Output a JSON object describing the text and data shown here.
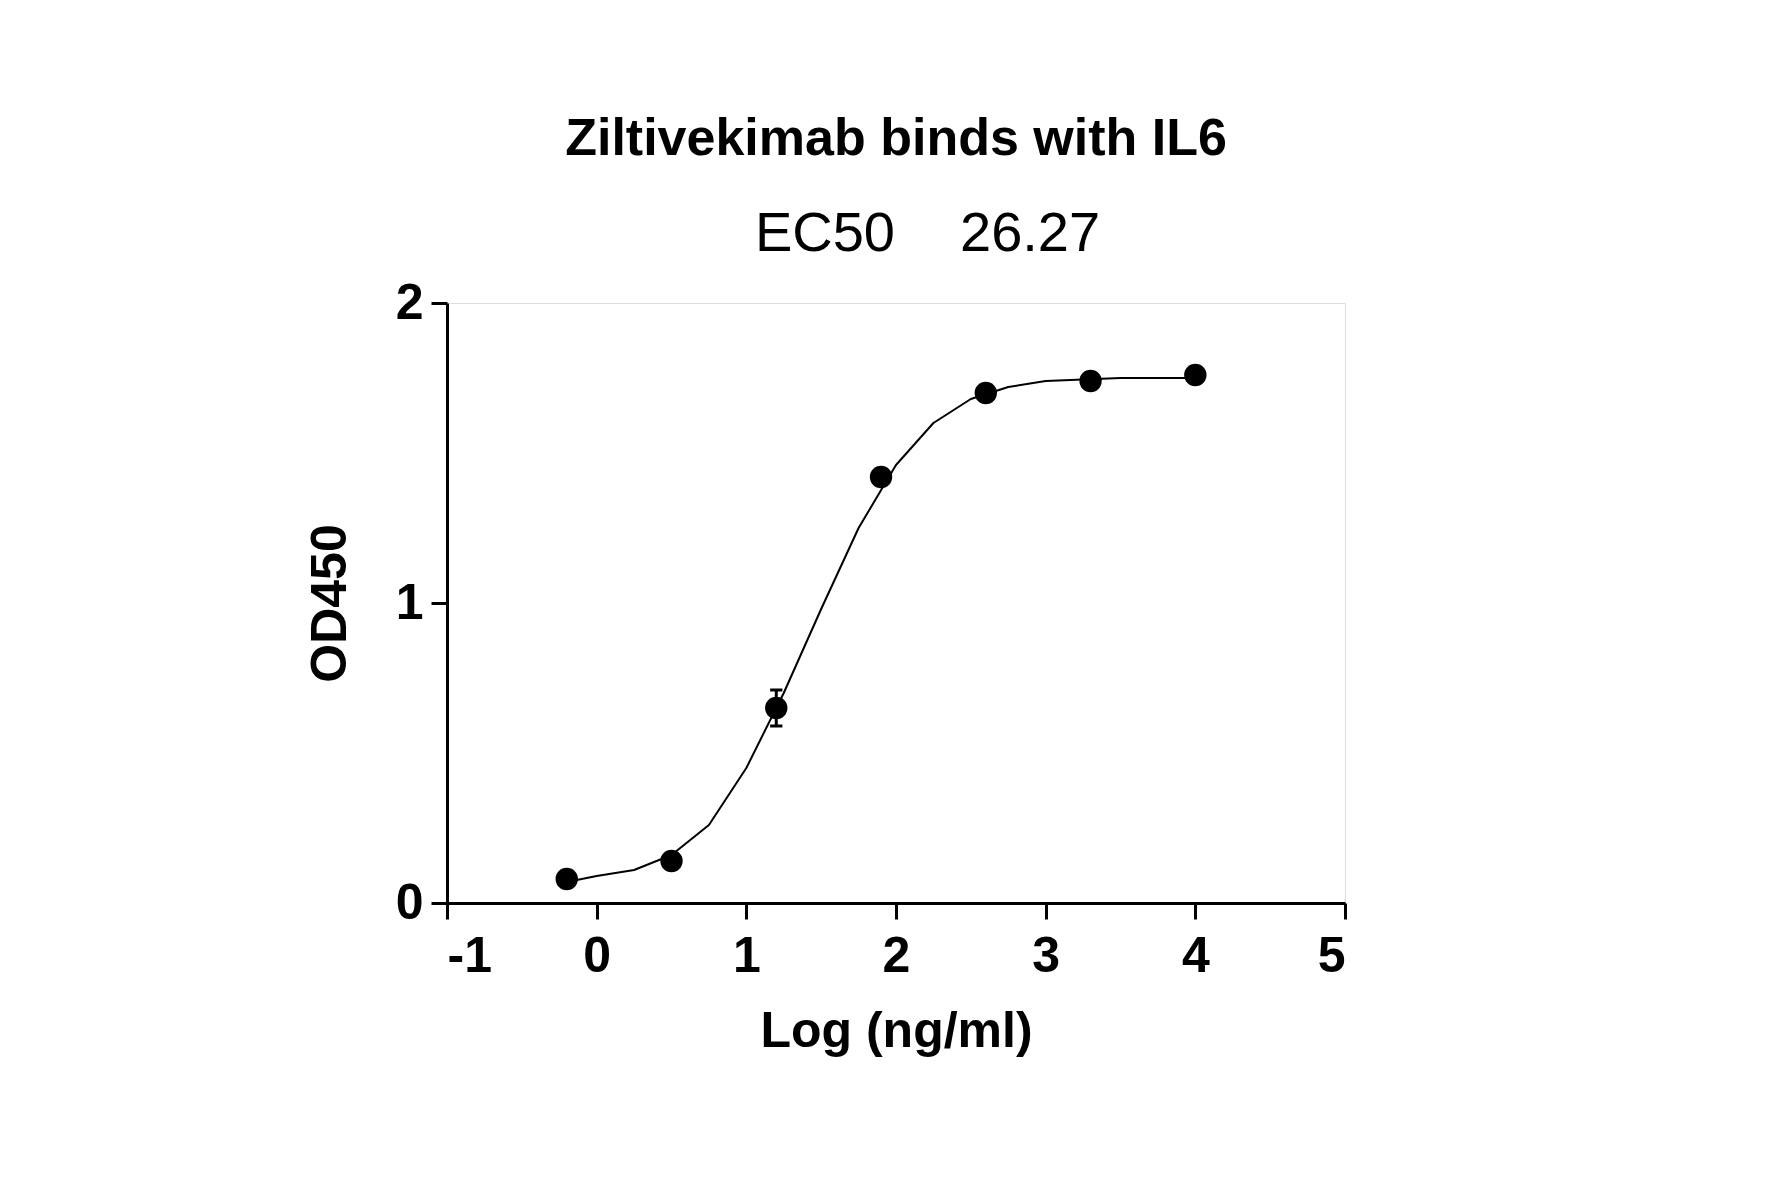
{
  "chart_data": {
    "type": "scatter",
    "title": "Ziltivekimab binds with IL6",
    "xlabel": "Log (ng/ml)",
    "ylabel": "OD450",
    "annotations": [
      "EC50",
      "26.27"
    ],
    "xlim": [
      -1,
      5
    ],
    "xticks": [
      -1,
      0,
      1,
      2,
      3,
      4,
      5
    ],
    "ylim": [
      0,
      2
    ],
    "yticks": [
      0,
      1,
      2
    ],
    "grid": false,
    "marker": "circle",
    "series": [
      {
        "color": "#000000",
        "x": [
          -0.2,
          0.5,
          1.2,
          1.9,
          2.6,
          3.3,
          4.0
        ],
        "values": [
          0.08,
          0.14,
          0.65,
          1.42,
          1.7,
          1.74,
          1.76
        ],
        "errors": [
          null,
          null,
          0.06,
          null,
          null,
          null,
          null
        ]
      },
      {
        "type": "line",
        "marker": "none",
        "color": "#000000",
        "x": [
          -0.2,
          0.0,
          0.25,
          0.5,
          0.75,
          1.0,
          1.25,
          1.5,
          1.75,
          2.0,
          2.25,
          2.5,
          2.75,
          3.0,
          3.5,
          4.0
        ],
        "values": [
          0.07,
          0.09,
          0.11,
          0.16,
          0.26,
          0.45,
          0.7,
          0.98,
          1.25,
          1.46,
          1.6,
          1.68,
          1.72,
          1.74,
          1.75,
          1.75
        ]
      }
    ]
  }
}
